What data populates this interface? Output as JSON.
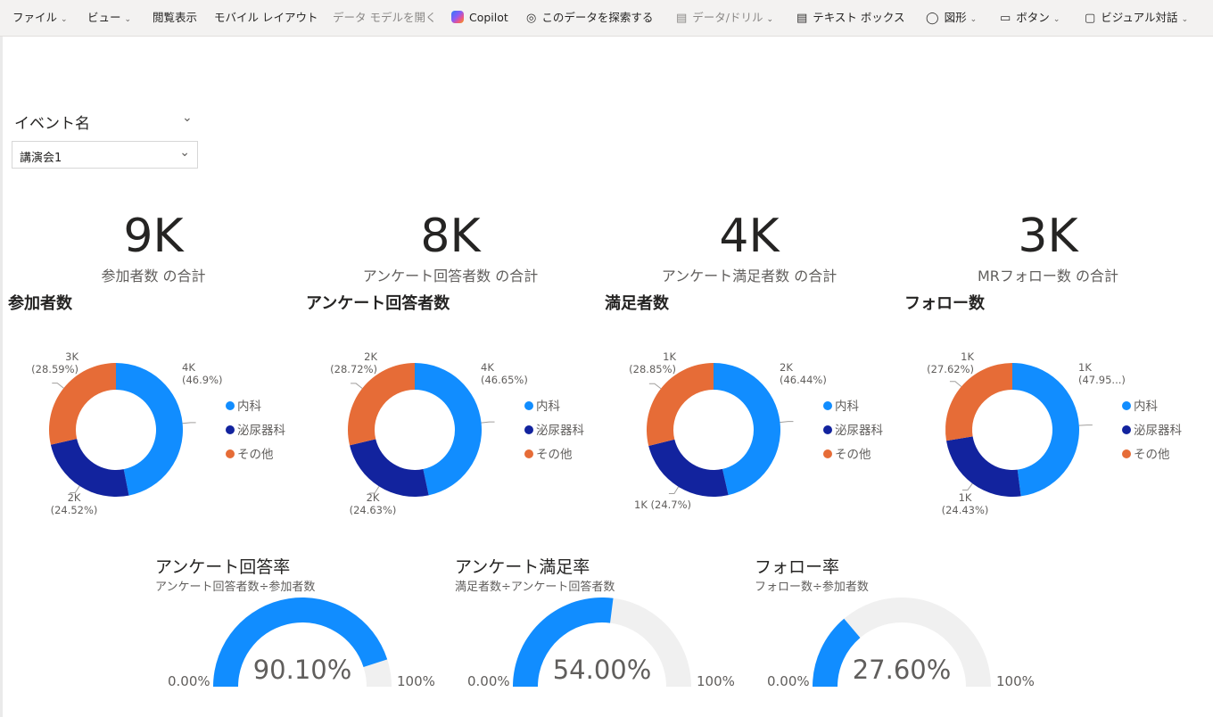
{
  "toolbar": [
    {
      "label": "ファイル",
      "chevron": true,
      "disabled": false,
      "icon": ""
    },
    {
      "label": "ビュー",
      "chevron": true,
      "disabled": false,
      "icon": ""
    },
    {
      "label": "閲覧表示",
      "chevron": false,
      "disabled": false,
      "icon": ""
    },
    {
      "label": "モバイル レイアウト",
      "chevron": false,
      "disabled": false,
      "icon": ""
    },
    {
      "label": "データ モデルを開く",
      "chevron": false,
      "disabled": true,
      "icon": ""
    },
    {
      "label": "Copilot",
      "chevron": false,
      "disabled": false,
      "icon": "copilot-icon"
    },
    {
      "label": "このデータを探索する",
      "chevron": false,
      "disabled": false,
      "icon": "binoculars-icon"
    },
    {
      "label": "データ/ドリル",
      "chevron": true,
      "disabled": true,
      "icon": "table-icon"
    },
    {
      "label": "テキスト ボックス",
      "chevron": false,
      "disabled": false,
      "icon": "textbox-icon"
    },
    {
      "label": "図形",
      "chevron": true,
      "disabled": false,
      "icon": "shapes-icon"
    },
    {
      "label": "ボタン",
      "chevron": true,
      "disabled": false,
      "icon": "button-icon"
    },
    {
      "label": "ビジュアル対話",
      "chevron": true,
      "disabled": false,
      "icon": "interaction-icon"
    }
  ],
  "slicer": {
    "title": "イベント名",
    "value": "講演会1"
  },
  "kpis": [
    {
      "value": "9K",
      "label": "参加者数 の合計"
    },
    {
      "value": "8K",
      "label": "アンケート回答者数 の合計"
    },
    {
      "value": "4K",
      "label": "アンケート満足者数 の合計"
    },
    {
      "value": "3K",
      "label": "MRフォロー数 の合計"
    }
  ],
  "colors": {
    "naika": "#118dff",
    "hinyoki": "#12239e",
    "other": "#e66c37",
    "gauge_track": "#f0f0f0",
    "gauge_fill": "#118dff"
  },
  "legend": [
    "内科",
    "泌尿器科",
    "その他"
  ],
  "chart_data": [
    {
      "type": "pie",
      "title": "参加者数",
      "categories": [
        "内科",
        "泌尿器科",
        "その他"
      ],
      "values": [
        46.9,
        24.52,
        28.59
      ],
      "data_labels": [
        [
          "4K",
          "(46.9%)"
        ],
        [
          "2K",
          "(24.52%)"
        ],
        [
          "3K",
          "(28.59%)"
        ]
      ]
    },
    {
      "type": "pie",
      "title": "アンケート回答者数",
      "categories": [
        "内科",
        "泌尿器科",
        "その他"
      ],
      "values": [
        46.65,
        24.63,
        28.72
      ],
      "data_labels": [
        [
          "4K",
          "(46.65%)"
        ],
        [
          "2K",
          "(24.63%)"
        ],
        [
          "2K",
          "(28.72%)"
        ]
      ]
    },
    {
      "type": "pie",
      "title": "満足者数",
      "categories": [
        "内科",
        "泌尿器科",
        "その他"
      ],
      "values": [
        46.44,
        24.7,
        28.85
      ],
      "data_labels": [
        [
          "2K",
          "(46.44%)"
        ],
        [
          "1K (24.7%)",
          ""
        ],
        [
          "1K",
          "(28.85%)"
        ]
      ]
    },
    {
      "type": "pie",
      "title": "フォロー数",
      "categories": [
        "内科",
        "泌尿器科",
        "その他"
      ],
      "values": [
        47.95,
        24.43,
        27.62
      ],
      "data_labels": [
        [
          "1K",
          "(47.95...)"
        ],
        [
          "1K",
          "(24.43%)"
        ],
        [
          "1K",
          "(27.62%)"
        ]
      ]
    }
  ],
  "gauges": [
    {
      "title": "アンケート回答率",
      "subtitle": "アンケート回答者数÷参加者数",
      "value": 0.901,
      "value_label": "90.10%",
      "min_label": "0.00%",
      "max_label": "100%"
    },
    {
      "title": "アンケート満足率",
      "subtitle": "満足者数÷アンケート回答者数",
      "value": 0.54,
      "value_label": "54.00%",
      "min_label": "0.00%",
      "max_label": "100%"
    },
    {
      "title": "フォロー率",
      "subtitle": "フォロー数÷参加者数",
      "value": 0.276,
      "value_label": "27.60%",
      "min_label": "0.00%",
      "max_label": "100%"
    }
  ]
}
